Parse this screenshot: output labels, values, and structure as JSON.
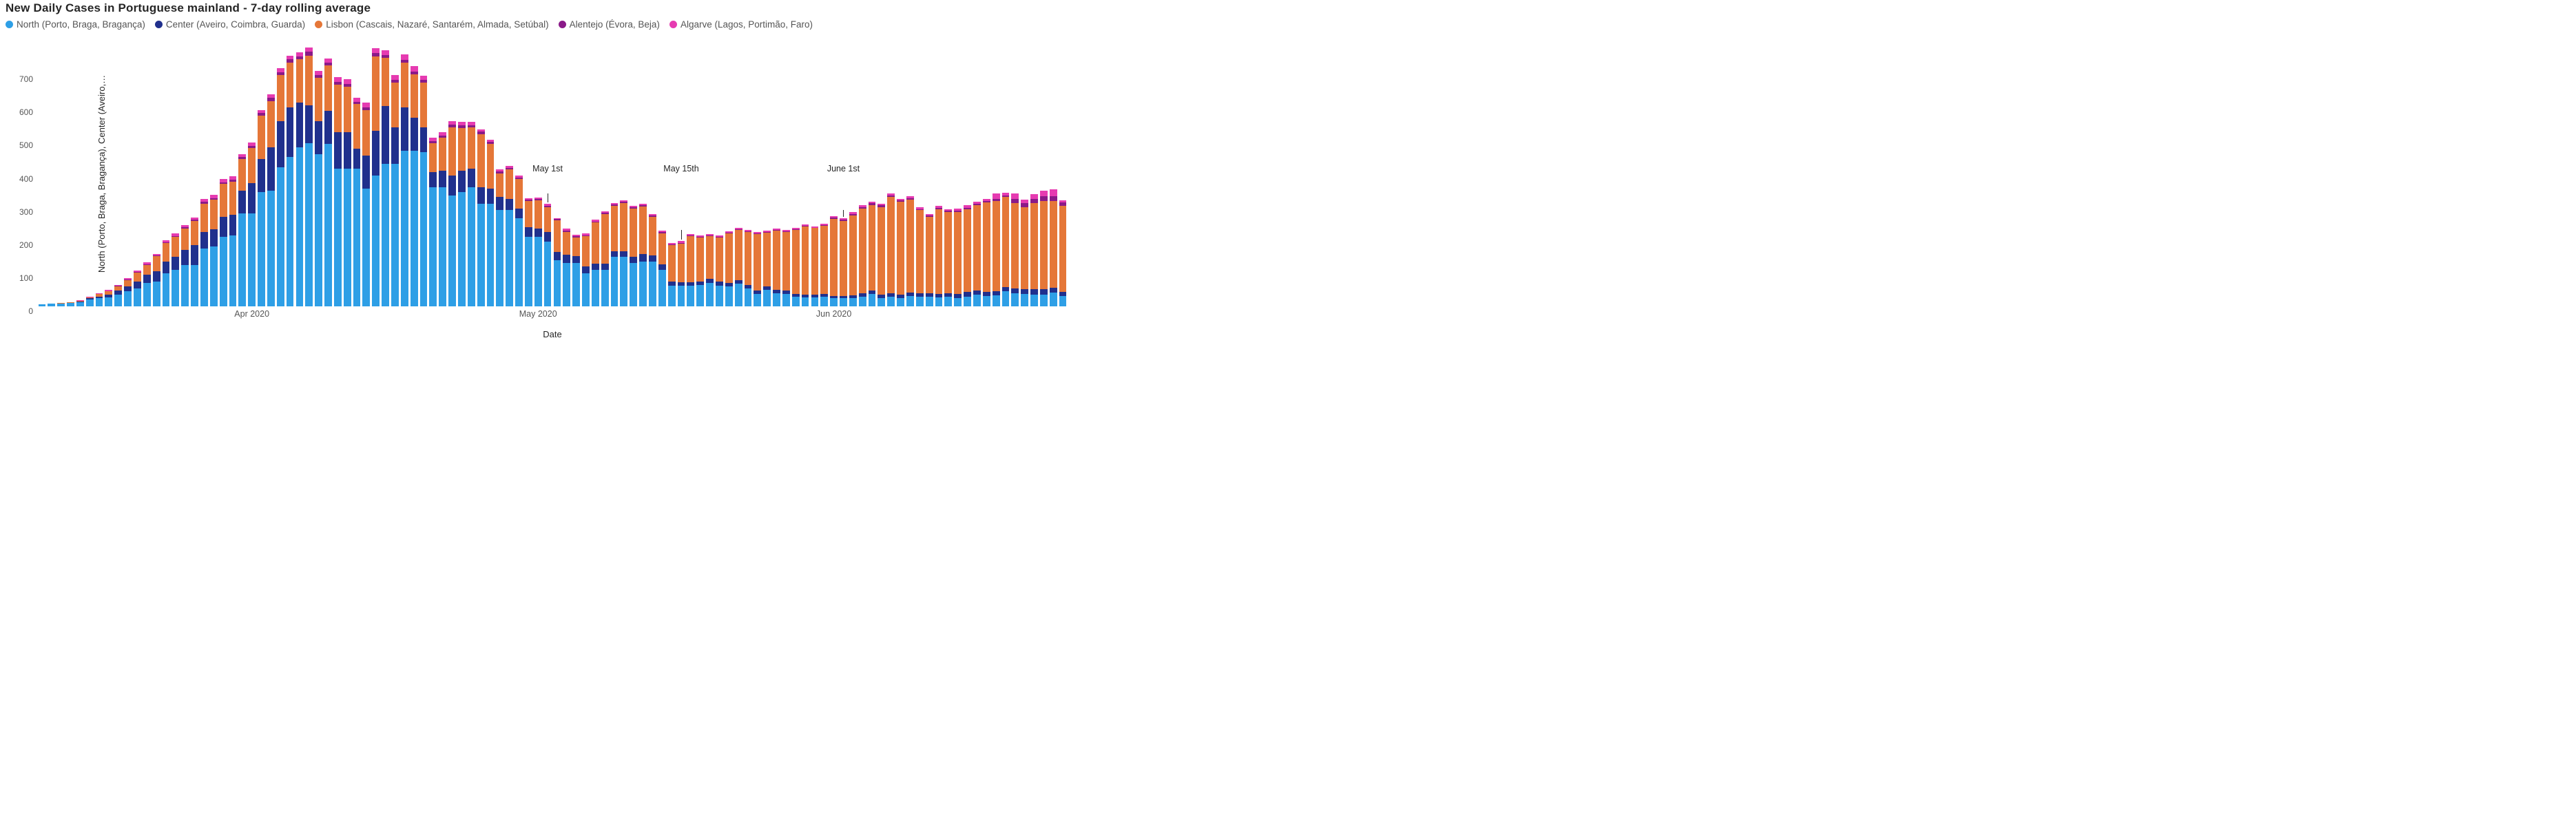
{
  "chart": {
    "type": "stacked-bar",
    "title": "New Daily Cases in Portuguese mainland - 7-day rolling average",
    "xlabel": "Date",
    "ylabel": "North (Porto, Braga, Bragança), Center (Aveiro,…",
    "title_fontsize": 17,
    "label_fontsize": 13,
    "tick_fontsize": 12,
    "background_color": "#ffffff",
    "legend_position": "top-left",
    "bar_gap_ratio": 0.22,
    "series": [
      {
        "key": "north",
        "label": "North (Porto, Braga, Bragança)",
        "color": "#2e9fe6"
      },
      {
        "key": "center",
        "label": "Center (Aveiro, Coimbra, Guarda)",
        "color": "#20308d"
      },
      {
        "key": "lisbon",
        "label": "Lisbon (Cascais, Nazaré, Santarém, Almada, Setúbal)",
        "color": "#e57738"
      },
      {
        "key": "alentejo",
        "label": "Alentejo (Évora, Beja)",
        "color": "#8a1a88"
      },
      {
        "key": "algarve",
        "label": "Algarve (Lagos, Portimão, Faro)",
        "color": "#e63bb1"
      }
    ],
    "y": {
      "min": 0,
      "max": 800,
      "ticks": [
        0,
        100,
        200,
        300,
        400,
        500,
        600,
        700
      ]
    },
    "x": {
      "n": 108,
      "month_ticks": [
        {
          "idx": 22,
          "label": "Apr 2020"
        },
        {
          "idx": 52,
          "label": "May 2020"
        },
        {
          "idx": 83,
          "label": "Jun 2020"
        }
      ]
    },
    "annotations": [
      {
        "idx": 53,
        "label": "May 1st",
        "line_top_v": 340,
        "label_v": 430
      },
      {
        "idx": 67,
        "label": "May 15th",
        "line_top_v": 230,
        "label_v": 430
      },
      {
        "idx": 84,
        "label": "June 1st",
        "line_top_v": 290,
        "label_v": 430
      }
    ],
    "data": [
      {
        "north": 6,
        "center": 0,
        "lisbon": 0,
        "alentejo": 0,
        "algarve": 0
      },
      {
        "north": 8,
        "center": 0,
        "lisbon": 0,
        "alentejo": 0,
        "algarve": 0
      },
      {
        "north": 9,
        "center": 0,
        "lisbon": 1,
        "alentejo": 0,
        "algarve": 0
      },
      {
        "north": 10,
        "center": 1,
        "lisbon": 1,
        "alentejo": 0,
        "algarve": 0
      },
      {
        "north": 13,
        "center": 2,
        "lisbon": 2,
        "alentejo": 0,
        "algarve": 1
      },
      {
        "north": 20,
        "center": 4,
        "lisbon": 4,
        "alentejo": 0,
        "algarve": 1
      },
      {
        "north": 24,
        "center": 6,
        "lisbon": 7,
        "alentejo": 1,
        "algarve": 2
      },
      {
        "north": 27,
        "center": 9,
        "lisbon": 9,
        "alentejo": 1,
        "algarve": 3
      },
      {
        "north": 35,
        "center": 12,
        "lisbon": 14,
        "alentejo": 1,
        "algarve": 3
      },
      {
        "north": 45,
        "center": 16,
        "lisbon": 19,
        "alentejo": 1,
        "algarve": 4
      },
      {
        "north": 55,
        "center": 20,
        "lisbon": 26,
        "alentejo": 2,
        "algarve": 5
      },
      {
        "north": 70,
        "center": 25,
        "lisbon": 30,
        "alentejo": 2,
        "algarve": 5
      },
      {
        "north": 75,
        "center": 30,
        "lisbon": 46,
        "alentejo": 2,
        "algarve": 6
      },
      {
        "north": 100,
        "center": 36,
        "lisbon": 55,
        "alentejo": 2,
        "algarve": 6
      },
      {
        "north": 110,
        "center": 40,
        "lisbon": 60,
        "alentejo": 3,
        "algarve": 7
      },
      {
        "north": 125,
        "center": 45,
        "lisbon": 65,
        "alentejo": 3,
        "algarve": 7
      },
      {
        "north": 125,
        "center": 60,
        "lisbon": 72,
        "alentejo": 4,
        "algarve": 8
      },
      {
        "north": 175,
        "center": 50,
        "lisbon": 85,
        "alentejo": 5,
        "algarve": 9
      },
      {
        "north": 180,
        "center": 52,
        "lisbon": 90,
        "alentejo": 5,
        "algarve": 9
      },
      {
        "north": 210,
        "center": 60,
        "lisbon": 100,
        "alentejo": 5,
        "algarve": 9
      },
      {
        "north": 215,
        "center": 62,
        "lisbon": 100,
        "alentejo": 6,
        "algarve": 9
      },
      {
        "north": 280,
        "center": 70,
        "lisbon": 95,
        "alentejo": 6,
        "algarve": 9
      },
      {
        "north": 280,
        "center": 92,
        "lisbon": 105,
        "alentejo": 8,
        "algarve": 10
      },
      {
        "north": 345,
        "center": 100,
        "lisbon": 130,
        "alentejo": 8,
        "algarve": 10
      },
      {
        "north": 350,
        "center": 130,
        "lisbon": 140,
        "alentejo": 9,
        "algarve": 11
      },
      {
        "north": 420,
        "center": 140,
        "lisbon": 138,
        "alentejo": 9,
        "algarve": 11
      },
      {
        "north": 450,
        "center": 150,
        "lisbon": 135,
        "alentejo": 10,
        "algarve": 12
      },
      {
        "north": 480,
        "center": 135,
        "lisbon": 130,
        "alentejo": 10,
        "algarve": 12
      },
      {
        "north": 492,
        "center": 115,
        "lisbon": 150,
        "alentejo": 11,
        "algarve": 13
      },
      {
        "north": 460,
        "center": 100,
        "lisbon": 130,
        "alentejo": 8,
        "algarve": 12
      },
      {
        "north": 490,
        "center": 100,
        "lisbon": 138,
        "alentejo": 8,
        "algarve": 12
      },
      {
        "north": 415,
        "center": 110,
        "lisbon": 145,
        "alentejo": 8,
        "algarve": 14
      },
      {
        "north": 415,
        "center": 110,
        "lisbon": 138,
        "alentejo": 8,
        "algarve": 14
      },
      {
        "north": 415,
        "center": 60,
        "lisbon": 135,
        "alentejo": 8,
        "algarve": 12
      },
      {
        "north": 355,
        "center": 100,
        "lisbon": 138,
        "alentejo": 8,
        "algarve": 14
      },
      {
        "north": 395,
        "center": 135,
        "lisbon": 225,
        "alentejo": 9,
        "algarve": 16
      },
      {
        "north": 430,
        "center": 175,
        "lisbon": 145,
        "alentejo": 9,
        "algarve": 15
      },
      {
        "north": 430,
        "center": 110,
        "lisbon": 135,
        "alentejo": 9,
        "algarve": 14
      },
      {
        "north": 470,
        "center": 130,
        "lisbon": 135,
        "alentejo": 9,
        "algarve": 16
      },
      {
        "north": 470,
        "center": 100,
        "lisbon": 130,
        "alentejo": 9,
        "algarve": 16
      },
      {
        "north": 465,
        "center": 75,
        "lisbon": 135,
        "alentejo": 8,
        "algarve": 13
      },
      {
        "north": 360,
        "center": 45,
        "lisbon": 88,
        "alentejo": 6,
        "algarve": 10
      },
      {
        "north": 360,
        "center": 50,
        "lisbon": 100,
        "alentejo": 6,
        "algarve": 9
      },
      {
        "north": 335,
        "center": 60,
        "lisbon": 145,
        "alentejo": 8,
        "algarve": 10
      },
      {
        "north": 345,
        "center": 65,
        "lisbon": 128,
        "alentejo": 8,
        "algarve": 10
      },
      {
        "north": 360,
        "center": 55,
        "lisbon": 125,
        "alentejo": 7,
        "algarve": 9
      },
      {
        "north": 310,
        "center": 50,
        "lisbon": 160,
        "alentejo": 7,
        "algarve": 8
      },
      {
        "north": 310,
        "center": 45,
        "lisbon": 135,
        "alentejo": 6,
        "algarve": 7
      },
      {
        "north": 290,
        "center": 40,
        "lisbon": 72,
        "alentejo": 5,
        "algarve": 6
      },
      {
        "north": 290,
        "center": 35,
        "lisbon": 88,
        "alentejo": 5,
        "algarve": 6
      },
      {
        "north": 265,
        "center": 30,
        "lisbon": 90,
        "alentejo": 4,
        "algarve": 5
      },
      {
        "north": 210,
        "center": 28,
        "lisbon": 80,
        "alentejo": 4,
        "algarve": 5
      },
      {
        "north": 210,
        "center": 25,
        "lisbon": 85,
        "alentejo": 4,
        "algarve": 5
      },
      {
        "north": 195,
        "center": 30,
        "lisbon": 75,
        "alentejo": 4,
        "algarve": 5
      },
      {
        "north": 140,
        "center": 25,
        "lisbon": 95,
        "alentejo": 3,
        "algarve": 4
      },
      {
        "north": 130,
        "center": 25,
        "lisbon": 70,
        "alentejo": 4,
        "algarve": 5
      },
      {
        "north": 130,
        "center": 22,
        "lisbon": 55,
        "alentejo": 4,
        "algarve": 5
      },
      {
        "north": 100,
        "center": 20,
        "lisbon": 92,
        "alentejo": 3,
        "algarve": 5
      },
      {
        "north": 110,
        "center": 18,
        "lisbon": 125,
        "alentejo": 3,
        "algarve": 5
      },
      {
        "north": 110,
        "center": 18,
        "lisbon": 150,
        "alentejo": 4,
        "algarve": 5
      },
      {
        "north": 150,
        "center": 16,
        "lisbon": 138,
        "alentejo": 3,
        "algarve": 5
      },
      {
        "north": 150,
        "center": 16,
        "lisbon": 145,
        "alentejo": 4,
        "algarve": 5
      },
      {
        "north": 130,
        "center": 20,
        "lisbon": 145,
        "alentejo": 4,
        "algarve": 5
      },
      {
        "north": 135,
        "center": 22,
        "lisbon": 145,
        "alentejo": 3,
        "algarve": 5
      },
      {
        "north": 135,
        "center": 18,
        "lisbon": 118,
        "alentejo": 3,
        "algarve": 5
      },
      {
        "north": 110,
        "center": 16,
        "lisbon": 95,
        "alentejo": 3,
        "algarve": 4
      },
      {
        "north": 62,
        "center": 12,
        "lisbon": 112,
        "alentejo": 2,
        "algarve": 4
      },
      {
        "north": 62,
        "center": 10,
        "lisbon": 118,
        "alentejo": 2,
        "algarve": 5
      },
      {
        "north": 62,
        "center": 10,
        "lisbon": 140,
        "alentejo": 2,
        "algarve": 5
      },
      {
        "north": 65,
        "center": 10,
        "lisbon": 133,
        "alentejo": 2,
        "algarve": 5
      },
      {
        "north": 70,
        "center": 14,
        "lisbon": 128,
        "alentejo": 2,
        "algarve": 5
      },
      {
        "north": 63,
        "center": 12,
        "lisbon": 132,
        "alentejo": 2,
        "algarve": 5
      },
      {
        "north": 60,
        "center": 10,
        "lisbon": 150,
        "alentejo": 2,
        "algarve": 4
      },
      {
        "north": 68,
        "center": 10,
        "lisbon": 152,
        "alentejo": 2,
        "algarve": 4
      },
      {
        "north": 55,
        "center": 10,
        "lisbon": 160,
        "alentejo": 2,
        "algarve": 4
      },
      {
        "north": 38,
        "center": 10,
        "lisbon": 170,
        "alentejo": 2,
        "algarve": 5
      },
      {
        "north": 50,
        "center": 10,
        "lisbon": 162,
        "alentejo": 2,
        "algarve": 5
      },
      {
        "north": 40,
        "center": 10,
        "lisbon": 178,
        "alentejo": 2,
        "algarve": 4
      },
      {
        "north": 38,
        "center": 10,
        "lisbon": 176,
        "alentejo": 2,
        "algarve": 4
      },
      {
        "north": 30,
        "center": 8,
        "lisbon": 192,
        "alentejo": 2,
        "algarve": 4
      },
      {
        "north": 28,
        "center": 8,
        "lisbon": 205,
        "alentejo": 2,
        "algarve": 4
      },
      {
        "north": 27,
        "center": 8,
        "lisbon": 201,
        "alentejo": 2,
        "algarve": 4
      },
      {
        "north": 30,
        "center": 8,
        "lisbon": 205,
        "alentejo": 2,
        "algarve": 4
      },
      {
        "north": 24,
        "center": 8,
        "lisbon": 232,
        "alentejo": 4,
        "algarve": 5
      },
      {
        "north": 24,
        "center": 8,
        "lisbon": 225,
        "alentejo": 4,
        "algarve": 5
      },
      {
        "north": 25,
        "center": 8,
        "lisbon": 242,
        "alentejo": 4,
        "algarve": 5
      },
      {
        "north": 30,
        "center": 10,
        "lisbon": 255,
        "alentejo": 5,
        "algarve": 5
      },
      {
        "north": 38,
        "center": 10,
        "lisbon": 258,
        "alentejo": 5,
        "algarve": 5
      },
      {
        "north": 25,
        "center": 10,
        "lisbon": 265,
        "alentejo": 5,
        "algarve": 5
      },
      {
        "north": 30,
        "center": 10,
        "lisbon": 290,
        "alentejo": 5,
        "algarve": 5
      },
      {
        "north": 25,
        "center": 10,
        "lisbon": 280,
        "alentejo": 4,
        "algarve": 5
      },
      {
        "north": 32,
        "center": 10,
        "lisbon": 280,
        "alentejo": 5,
        "algarve": 5
      },
      {
        "north": 30,
        "center": 10,
        "lisbon": 250,
        "alentejo": 4,
        "algarve": 5
      },
      {
        "north": 30,
        "center": 10,
        "lisbon": 230,
        "alentejo": 4,
        "algarve": 5
      },
      {
        "north": 28,
        "center": 10,
        "lisbon": 256,
        "alentejo": 4,
        "algarve": 5
      },
      {
        "north": 30,
        "center": 10,
        "lisbon": 245,
        "alentejo": 4,
        "algarve": 5
      },
      {
        "north": 25,
        "center": 12,
        "lisbon": 248,
        "alentejo": 4,
        "algarve": 6
      },
      {
        "north": 30,
        "center": 14,
        "lisbon": 250,
        "alentejo": 4,
        "algarve": 8
      },
      {
        "north": 35,
        "center": 12,
        "lisbon": 258,
        "alentejo": 4,
        "algarve": 6
      },
      {
        "north": 32,
        "center": 12,
        "lisbon": 270,
        "alentejo": 4,
        "algarve": 6
      },
      {
        "north": 33,
        "center": 12,
        "lisbon": 272,
        "alentejo": 8,
        "algarve": 16
      },
      {
        "north": 45,
        "center": 14,
        "lisbon": 272,
        "alentejo": 4,
        "algarve": 8
      },
      {
        "north": 40,
        "center": 14,
        "lisbon": 258,
        "alentejo": 12,
        "algarve": 16
      },
      {
        "north": 38,
        "center": 14,
        "lisbon": 248,
        "alentejo": 12,
        "algarve": 10
      },
      {
        "north": 36,
        "center": 15,
        "lisbon": 260,
        "alentejo": 14,
        "algarve": 14
      },
      {
        "north": 36,
        "center": 15,
        "lisbon": 268,
        "alentejo": 14,
        "algarve": 16
      },
      {
        "north": 42,
        "center": 15,
        "lisbon": 262,
        "alentejo": 14,
        "algarve": 20
      },
      {
        "north": 32,
        "center": 12,
        "lisbon": 260,
        "alentejo": 10,
        "algarve": 6
      }
    ]
  }
}
